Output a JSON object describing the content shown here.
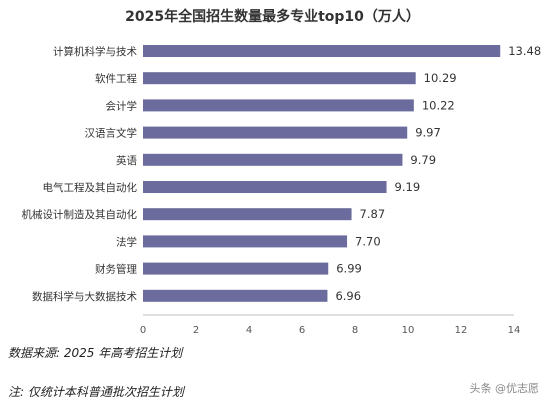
{
  "chart_data": {
    "type": "bar",
    "orientation": "horizontal",
    "title": "2025年全国招生数量最多专业top10（万人）",
    "categories": [
      "计算机科学与技术",
      "软件工程",
      "会计学",
      "汉语言文学",
      "英语",
      "电气工程及其自动化",
      "机械设计制造及其自动化",
      "法学",
      "财务管理",
      "数据科学与大数据技术"
    ],
    "values": [
      13.48,
      10.29,
      10.22,
      9.97,
      9.79,
      9.19,
      7.87,
      7.7,
      6.99,
      6.96
    ],
    "value_labels": [
      "13.48",
      "10.29",
      "10.22",
      "9.97",
      "9.79",
      "9.19",
      "7.87",
      "7.70",
      "6.99",
      "6.96"
    ],
    "xticks": [
      "0",
      "2",
      "4",
      "6",
      "8",
      "10",
      "12",
      "14"
    ],
    "xlim": [
      0,
      14
    ],
    "xlabel": "",
    "ylabel": "",
    "grid": false,
    "bar_color": "#6b6b9e"
  },
  "source": "数据来源: 2025 年高考招生计划",
  "note": "注: 仅统计本科普通批次招生计划",
  "credit": "头条 @优志愿"
}
